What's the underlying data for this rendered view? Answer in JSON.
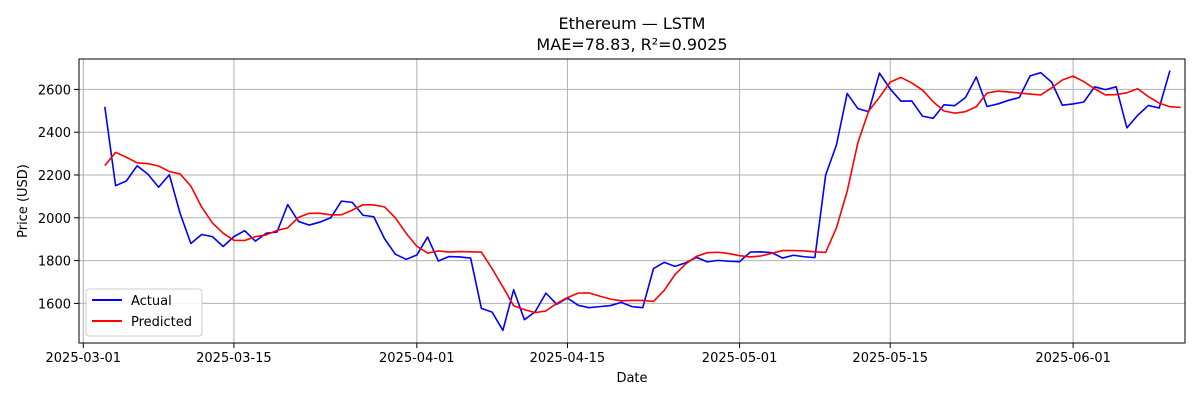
{
  "chart_data": {
    "type": "line",
    "title": "Ethereum — LSTM",
    "subtitle": "MAE=78.83, R²=0.9025",
    "xlabel": "Date",
    "ylabel": "Price (USD)",
    "grid": true,
    "legend_position": "bottom-left",
    "x_start_date": "2025-03-03",
    "x_range_days": [
      -2.4,
      100.4
    ],
    "ylim": [
      1415,
      2742
    ],
    "xticks": [
      {
        "label": "2025-03-01",
        "day": -2
      },
      {
        "label": "2025-03-15",
        "day": 12
      },
      {
        "label": "2025-04-01",
        "day": 29
      },
      {
        "label": "2025-04-15",
        "day": 43
      },
      {
        "label": "2025-05-01",
        "day": 59
      },
      {
        "label": "2025-05-15",
        "day": 73
      },
      {
        "label": "2025-06-01",
        "day": 90
      }
    ],
    "yticks": [
      1600,
      1800,
      2000,
      2200,
      2400,
      2600
    ],
    "series": [
      {
        "name": "Actual",
        "color": "#0000ff",
        "start_day": 0,
        "values": [
          2519,
          2150,
          2172,
          2243,
          2204,
          2143,
          2201,
          2020,
          1880,
          1922,
          1912,
          1866,
          1912,
          1940,
          1891,
          1928,
          1933,
          2062,
          1983,
          1966,
          1980,
          2000,
          2078,
          2072,
          2012,
          2005,
          1902,
          1830,
          1806,
          1826,
          1910,
          1798,
          1819,
          1817,
          1812,
          1577,
          1559,
          1474,
          1664,
          1524,
          1561,
          1648,
          1596,
          1625,
          1591,
          1580,
          1585,
          1590,
          1605,
          1585,
          1580,
          1763,
          1792,
          1773,
          1790,
          1815,
          1794,
          1801,
          1797,
          1795,
          1840,
          1841,
          1837,
          1812,
          1825,
          1818,
          1814,
          2200,
          2340,
          2581,
          2510,
          2496,
          2676,
          2602,
          2545,
          2546,
          2475,
          2465,
          2528,
          2524,
          2562,
          2658,
          2520,
          2532,
          2549,
          2562,
          2663,
          2678,
          2634,
          2526,
          2532,
          2541,
          2612,
          2599,
          2612,
          2420,
          2479,
          2525,
          2513,
          2688
        ]
      },
      {
        "name": "Predicted",
        "color": "#ff0000",
        "start_day": 0,
        "values": [
          2244,
          2306,
          2283,
          2257,
          2253,
          2242,
          2216,
          2205,
          2148,
          2050,
          1976,
          1928,
          1895,
          1894,
          1912,
          1920,
          1941,
          1953,
          2002,
          2021,
          2021,
          2014,
          2014,
          2036,
          2061,
          2060,
          2051,
          2000,
          1928,
          1867,
          1835,
          1845,
          1840,
          1842,
          1841,
          1840,
          1762,
          1677,
          1589,
          1571,
          1557,
          1565,
          1600,
          1627,
          1648,
          1649,
          1634,
          1620,
          1612,
          1614,
          1614,
          1609,
          1661,
          1735,
          1785,
          1820,
          1837,
          1839,
          1833,
          1823,
          1817,
          1822,
          1834,
          1847,
          1847,
          1845,
          1841,
          1838,
          1953,
          2124,
          2352,
          2499,
          2563,
          2634,
          2656,
          2630,
          2597,
          2542,
          2499,
          2489,
          2496,
          2519,
          2583,
          2592,
          2588,
          2583,
          2578,
          2574,
          2607,
          2644,
          2662,
          2636,
          2603,
          2574,
          2576,
          2584,
          2603,
          2566,
          2536,
          2519,
          2516
        ]
      }
    ]
  }
}
